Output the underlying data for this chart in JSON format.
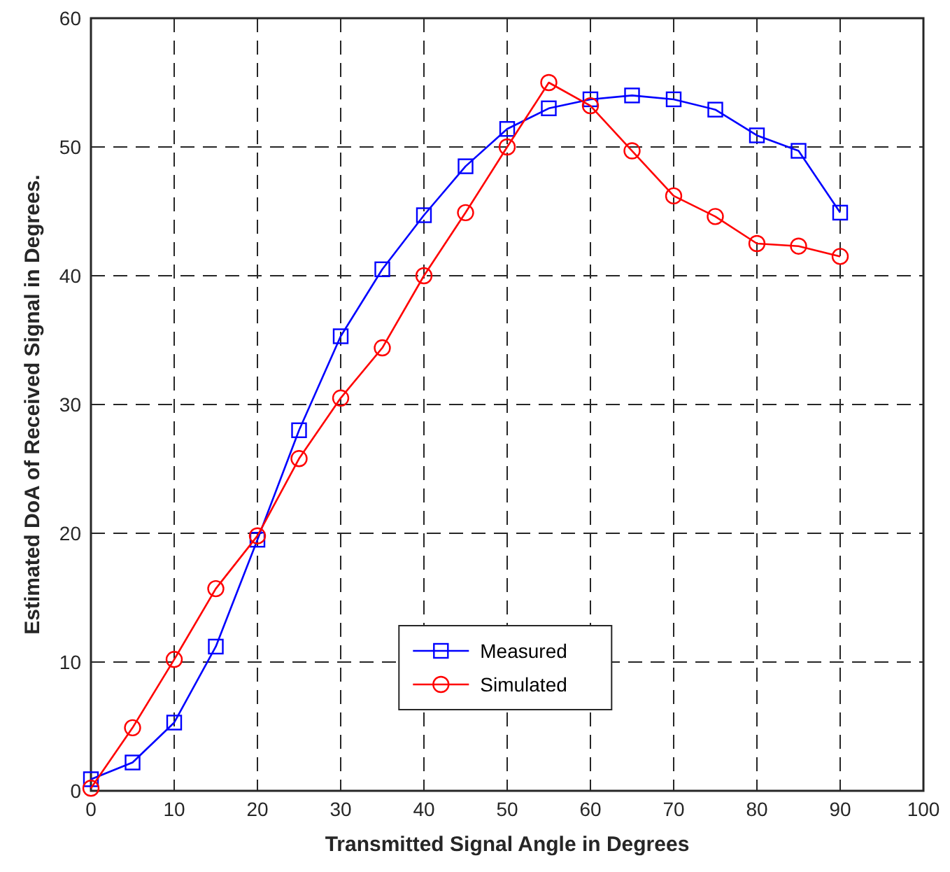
{
  "chart_data": {
    "type": "line",
    "xlabel": "Transmitted Signal Angle in Degrees",
    "ylabel": "Estimated DoA of Received Signal in Degrees.",
    "x": [
      0,
      5,
      10,
      15,
      20,
      25,
      30,
      35,
      40,
      45,
      50,
      55,
      60,
      65,
      70,
      75,
      80,
      85,
      90
    ],
    "series": [
      {
        "name": "Measured",
        "color": "#0000ff",
        "marker": "square",
        "values": [
          0.9,
          2.2,
          5.3,
          11.2,
          19.5,
          28,
          35.3,
          40.5,
          44.7,
          48.5,
          51.4,
          53,
          53.7,
          54,
          53.7,
          52.9,
          50.9,
          49.7,
          44.9
        ]
      },
      {
        "name": "Simulated",
        "color": "#ff0000",
        "marker": "circle",
        "values": [
          0.2,
          4.9,
          10.2,
          15.7,
          19.8,
          25.8,
          30.5,
          34.4,
          40,
          44.9,
          50,
          55,
          53.2,
          49.7,
          46.2,
          44.6,
          42.5,
          42.3,
          41.5
        ]
      }
    ],
    "xlim": [
      0,
      100
    ],
    "xticks": [
      0,
      10,
      20,
      30,
      40,
      50,
      60,
      70,
      80,
      90,
      100
    ],
    "ylim": [
      0,
      60
    ],
    "yticks": [
      0,
      10,
      20,
      30,
      40,
      50,
      60
    ],
    "grid": true,
    "line_style": "solid",
    "legend": "bottom"
  }
}
